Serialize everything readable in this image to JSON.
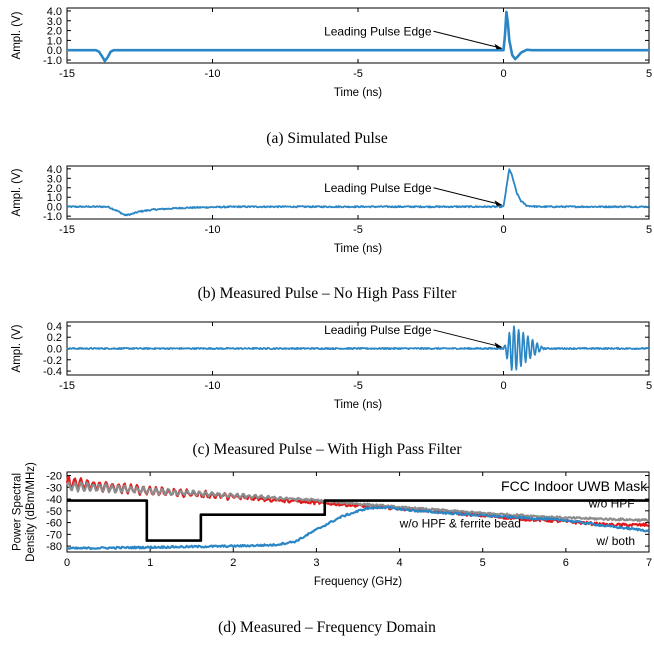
{
  "chart_data": [
    {
      "type": "line",
      "caption": "(a) Simulated Pulse",
      "xlabel": "Time (ns)",
      "ylabel": "Ampl. (V)",
      "xlim": [
        -15,
        5
      ],
      "ylim": [
        -1.3,
        4.3
      ],
      "xticks": [
        -15,
        -10,
        -5,
        0,
        5
      ],
      "yticks": [
        -1.0,
        0.0,
        1.0,
        2.0,
        3.0,
        4.0
      ],
      "ytick_labels": [
        "-1.0",
        "0.0",
        "1.0",
        "2.0",
        "3.0",
        "4.0"
      ],
      "annotation": {
        "text": "Leading Pulse Edge",
        "x": 0.0,
        "y": 0.1
      },
      "series": [
        {
          "color": "#2a86c4",
          "x": [
            -15,
            -14.0,
            -13.9,
            -13.8,
            -13.7,
            -13.6,
            -13.5,
            -13.4,
            0.0,
            0.05,
            0.1,
            0.15,
            0.2,
            0.3,
            0.4,
            0.5,
            0.6,
            0.8,
            1.0,
            5
          ],
          "y": [
            0,
            0,
            -0.15,
            -0.6,
            -1.1,
            -0.7,
            -0.15,
            0,
            0,
            1.5,
            3.9,
            2.8,
            1.0,
            -0.5,
            -0.9,
            -0.6,
            -0.25,
            0.05,
            0,
            0
          ]
        }
      ]
    },
    {
      "type": "line",
      "caption": "(b) Measured Pulse – No High Pass Filter",
      "xlabel": "Time (ns)",
      "ylabel": "Ampl. (V)",
      "xlim": [
        -15,
        5
      ],
      "ylim": [
        -1.3,
        4.3
      ],
      "xticks": [
        -15,
        -10,
        -5,
        0,
        5
      ],
      "yticks": [
        -1.0,
        0.0,
        1.0,
        2.0,
        3.0,
        4.0
      ],
      "ytick_labels": [
        "-1.0",
        "0.0",
        "1.0",
        "2.0",
        "3.0",
        "4.0"
      ],
      "annotation": {
        "text": "Leading Pulse Edge",
        "x": 0.0,
        "y": 0.1
      },
      "noise_amplitude": 0.15,
      "series": [
        {
          "color": "#2a86c4",
          "x": [
            -15,
            -13.6,
            -13.3,
            -13.0,
            -12.8,
            -12.5,
            -12.0,
            -11.0,
            -10.0,
            -9.0,
            0.0,
            0.1,
            0.2,
            0.3,
            0.45,
            0.6,
            0.8,
            1.2,
            5
          ],
          "y": [
            0,
            0,
            -0.4,
            -0.9,
            -0.8,
            -0.5,
            -0.3,
            -0.12,
            -0.05,
            0,
            0,
            2.0,
            4.0,
            3.2,
            1.5,
            0.6,
            0.1,
            0,
            0
          ]
        }
      ]
    },
    {
      "type": "line",
      "caption": "(c) Measured Pulse – With High Pass Filter",
      "xlabel": "Time (ns)",
      "ylabel": "Ampl. (V)",
      "xlim": [
        -15,
        5
      ],
      "ylim": [
        -0.47,
        0.47
      ],
      "xticks": [
        -15,
        -10,
        -5,
        0,
        5
      ],
      "yticks": [
        -0.4,
        -0.2,
        0.0,
        0.2,
        0.4
      ],
      "ytick_labels": [
        "-0.4",
        "-0.2",
        "0.0",
        "0.2",
        "0.4"
      ],
      "annotation": {
        "text": "Leading Pulse Edge",
        "x": 0.0,
        "y": 0.01
      },
      "noise_amplitude": 0.025,
      "series": [
        {
          "color": "#2a86c4",
          "ringing": {
            "start": 0.0,
            "period": 0.16,
            "peak": 0.42,
            "peak_at": 0.3,
            "decay_end": 1.4
          }
        }
      ]
    },
    {
      "type": "line",
      "caption": "(d) Measured – Frequency Domain",
      "xlabel": "Frequency (GHz)",
      "ylabel": "Power Spectral Density (dBm/MHz)",
      "xlim": [
        0,
        7
      ],
      "ylim": [
        -85,
        -17
      ],
      "xticks": [
        0,
        1,
        2,
        3,
        4,
        5,
        6,
        7
      ],
      "yticks": [
        -80,
        -70,
        -60,
        -50,
        -40,
        -30,
        -20
      ],
      "ytick_labels": [
        "-80",
        "-70",
        "-60",
        "-50",
        "-40",
        "-30",
        "-20"
      ],
      "labels": [
        {
          "text": "FCC Indoor UWB Mask",
          "x": 6.1,
          "y": -33
        },
        {
          "text": "w/o HPF",
          "x": 6.55,
          "y": -47
        },
        {
          "text": "w/o HPF & ferrite bead",
          "x": 4.0,
          "y": -64
        },
        {
          "text": "w/ both",
          "x": 6.6,
          "y": -79
        }
      ],
      "series": [
        {
          "name": "FCC Indoor UWB Mask",
          "color": "#000000",
          "x": [
            0,
            0.96,
            0.96,
            1.61,
            1.61,
            3.1,
            3.1,
            7
          ],
          "y": [
            -41.3,
            -41.3,
            -75.3,
            -75.3,
            -53.3,
            -53.3,
            -41.3,
            -41.3
          ]
        },
        {
          "name": "w/o HPF & ferrite bead",
          "color": "#e31a1c",
          "x": [
            0,
            0.5,
            1.0,
            2.0,
            3.0,
            4.0,
            5.0,
            5.5,
            6.0,
            6.5,
            7.0
          ],
          "y": [
            -26,
            -30,
            -33,
            -38,
            -43,
            -48,
            -54,
            -57,
            -59,
            -62,
            -62
          ]
        },
        {
          "name": "w/o HPF",
          "color": "#8c8c8c",
          "x": [
            0,
            0.5,
            1.0,
            2.0,
            3.0,
            4.0,
            5.0,
            6.0,
            7.0
          ],
          "y": [
            -29,
            -31,
            -33,
            -37,
            -41,
            -47,
            -52,
            -56,
            -58
          ]
        },
        {
          "name": "w/ both",
          "color": "#2a86c4",
          "x": [
            0,
            1.0,
            2.0,
            2.5,
            2.75,
            3.0,
            3.3,
            3.6,
            3.8,
            4.2,
            4.6,
            5.0,
            5.5,
            6.0,
            6.5,
            7.0
          ],
          "y": [
            -82,
            -81,
            -80,
            -79,
            -76,
            -66,
            -55,
            -48,
            -47,
            -50,
            -52,
            -54,
            -56,
            -58,
            -63,
            -67
          ]
        }
      ]
    }
  ]
}
